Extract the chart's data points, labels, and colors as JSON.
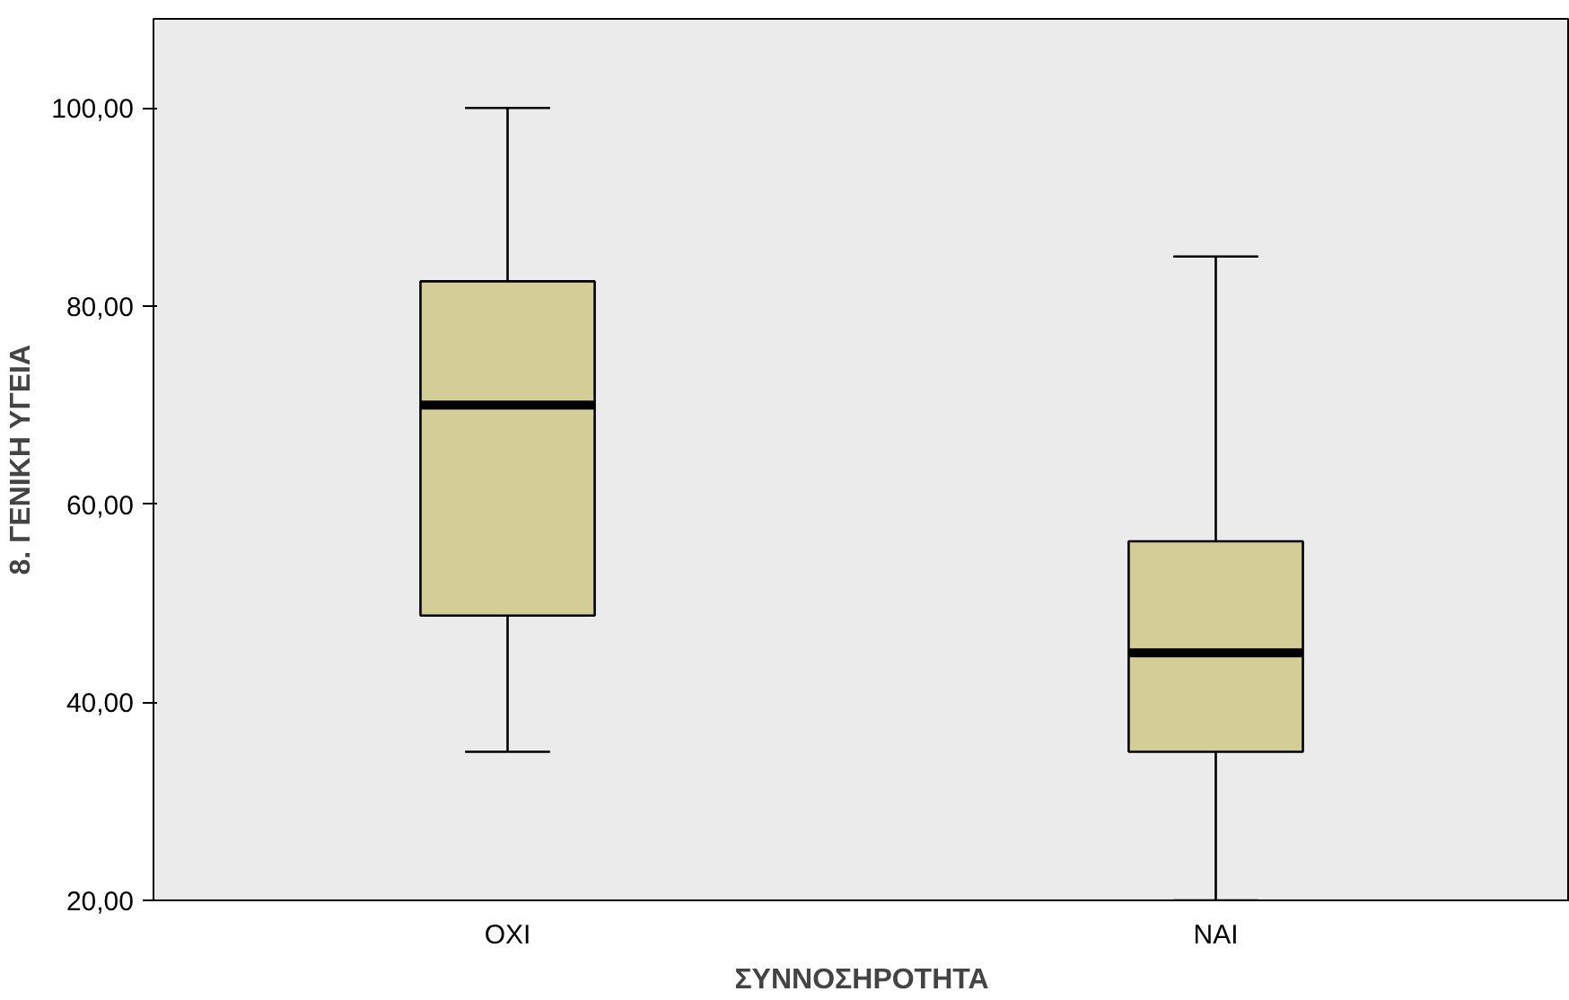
{
  "chart_data": {
    "type": "box",
    "xlabel": "ΣΥΝΝΟΣΗΡΟΤΗΤΑ",
    "ylabel": "8. ΓΕΝΙΚΗ ΥΓΕΙΑ",
    "categories": [
      "ΟΧΙ",
      "ΝΑΙ"
    ],
    "boxes": [
      {
        "low": 35,
        "q1": 48.75,
        "median": 70,
        "q3": 82.5,
        "high": 100
      },
      {
        "low": 20,
        "q1": 35,
        "median": 45,
        "q3": 56.25,
        "high": 85
      }
    ],
    "color": "#d3ce97",
    "ylim": [
      20,
      109
    ],
    "yticks": [
      {
        "value": 20,
        "label": "20,00"
      },
      {
        "value": 40,
        "label": "40,00"
      },
      {
        "value": 60,
        "label": "60,00"
      },
      {
        "value": 80,
        "label": "80,00"
      },
      {
        "value": 100,
        "label": "100,00"
      }
    ],
    "grid": false
  }
}
